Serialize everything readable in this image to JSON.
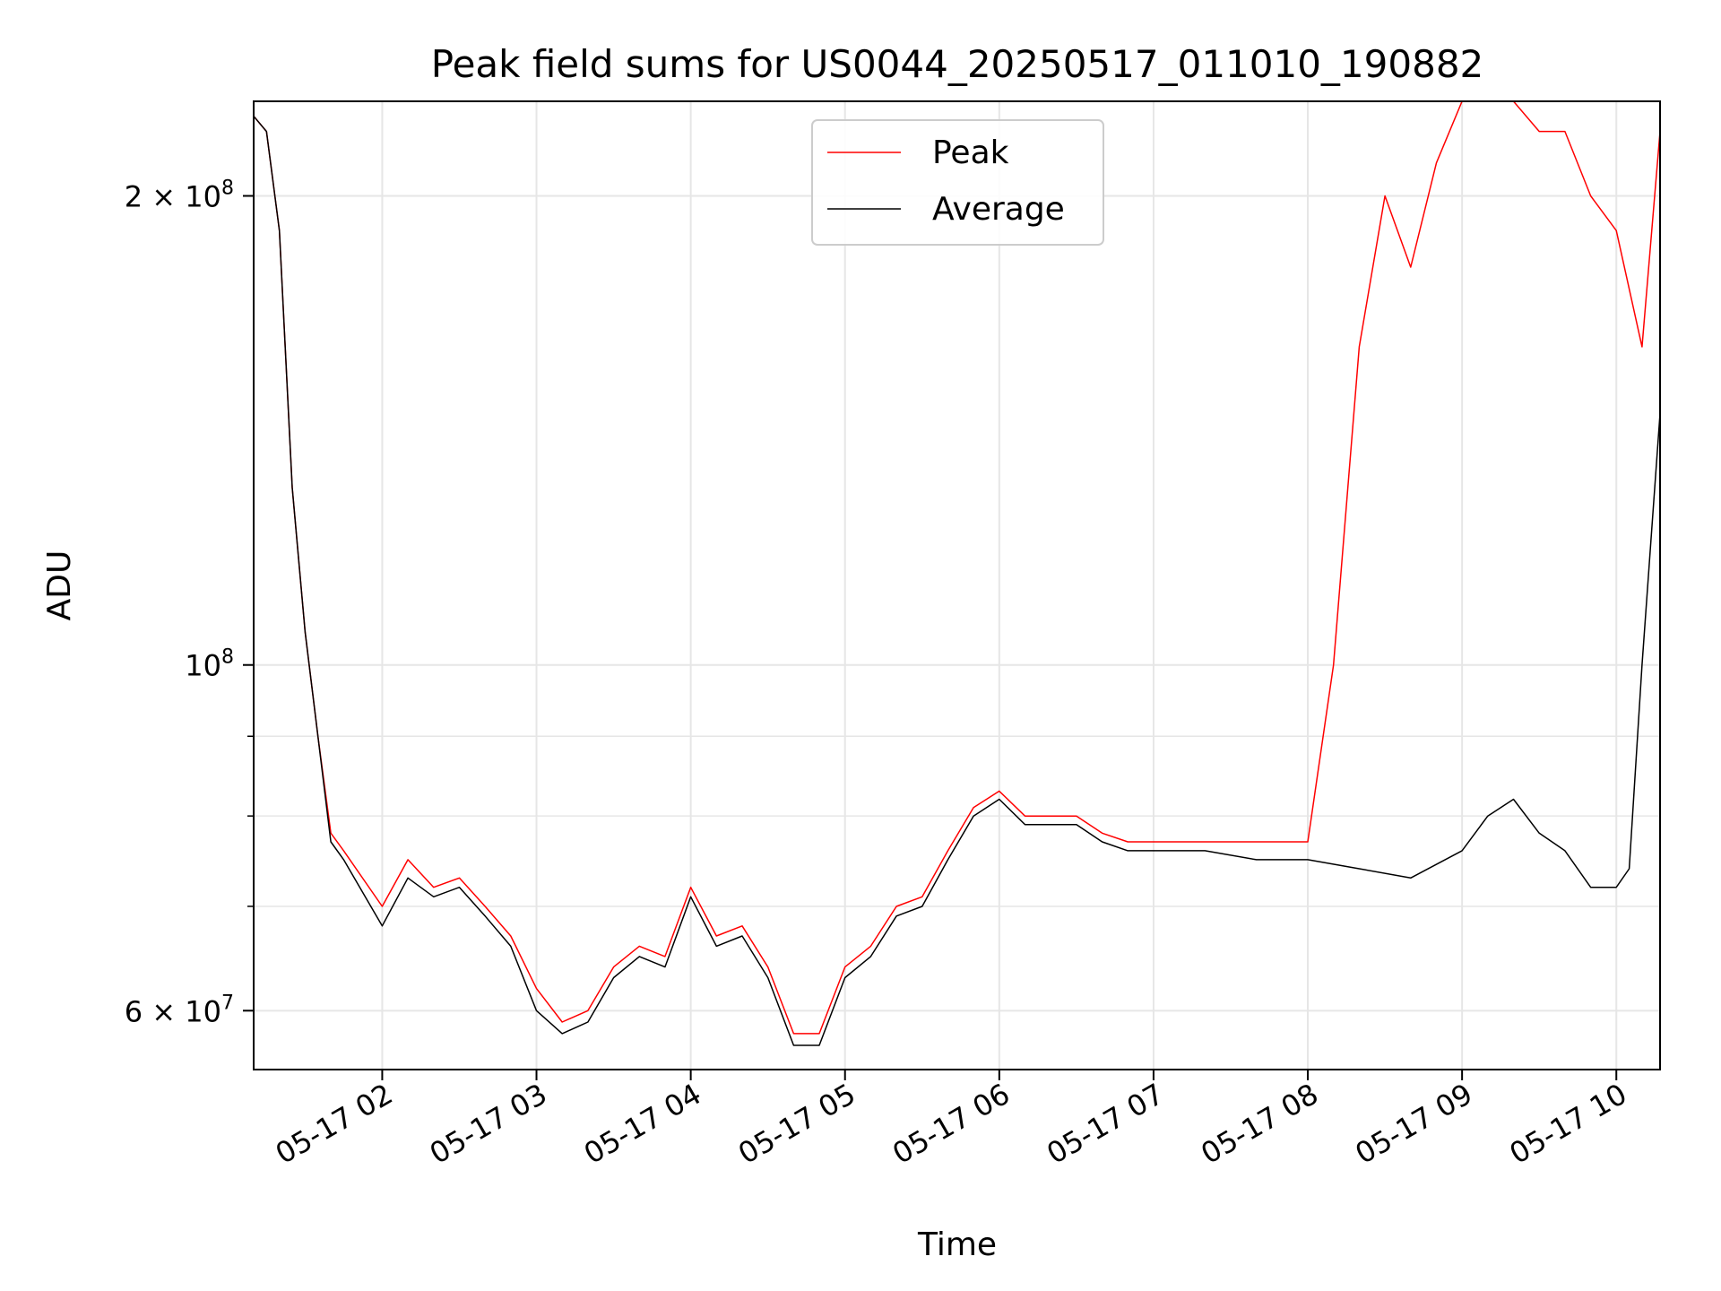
{
  "chart_data": {
    "type": "line",
    "title": "Peak field sums for US0044_20250517_011010_190882",
    "xlabel": "Time",
    "ylabel": "ADU",
    "y_scale": "log",
    "ylim": [
      55000000.0,
      230000000.0
    ],
    "xlim": [
      "2025-05-17 01:10",
      "2025-05-17 10:17"
    ],
    "x_ticks": [
      "05-17 02",
      "05-17 03",
      "05-17 04",
      "05-17 05",
      "05-17 06",
      "05-17 07",
      "05-17 08",
      "05-17 09",
      "05-17 10"
    ],
    "y_ticks": [
      {
        "value": 60000000.0,
        "mantissa": "6",
        "label": "6 × 10^7"
      },
      {
        "value": 100000000.0,
        "mantissa": "",
        "label": "10^8"
      },
      {
        "value": 200000000.0,
        "mantissa": "2",
        "label": "2 × 10^8"
      }
    ],
    "grid": true,
    "legend_position": "top-center",
    "series": [
      {
        "name": "Peak",
        "color": "#ff0000",
        "x": [
          "2025-05-17 01:10",
          "2025-05-17 01:15",
          "2025-05-17 01:20",
          "2025-05-17 01:25",
          "2025-05-17 01:30",
          "2025-05-17 01:35",
          "2025-05-17 01:40",
          "2025-05-17 01:45",
          "2025-05-17 02:00",
          "2025-05-17 02:10",
          "2025-05-17 02:20",
          "2025-05-17 02:30",
          "2025-05-17 02:40",
          "2025-05-17 02:50",
          "2025-05-17 03:00",
          "2025-05-17 03:10",
          "2025-05-17 03:20",
          "2025-05-17 03:30",
          "2025-05-17 03:40",
          "2025-05-17 03:50",
          "2025-05-17 04:00",
          "2025-05-17 04:10",
          "2025-05-17 04:20",
          "2025-05-17 04:30",
          "2025-05-17 04:40",
          "2025-05-17 04:50",
          "2025-05-17 05:00",
          "2025-05-17 05:10",
          "2025-05-17 05:20",
          "2025-05-17 05:30",
          "2025-05-17 05:40",
          "2025-05-17 05:50",
          "2025-05-17 06:00",
          "2025-05-17 06:10",
          "2025-05-17 06:20",
          "2025-05-17 06:30",
          "2025-05-17 06:40",
          "2025-05-17 06:50",
          "2025-05-17 07:00",
          "2025-05-17 07:20",
          "2025-05-17 07:40",
          "2025-05-17 08:00",
          "2025-05-17 08:10",
          "2025-05-17 08:20",
          "2025-05-17 08:30",
          "2025-05-17 08:40",
          "2025-05-17 08:50",
          "2025-05-17 09:00",
          "2025-05-17 09:10",
          "2025-05-17 09:20",
          "2025-05-17 09:30",
          "2025-05-17 09:40",
          "2025-05-17 09:50",
          "2025-05-17 10:00",
          "2025-05-17 10:10",
          "2025-05-17 10:17"
        ],
        "values": [
          225000000.0,
          220000000.0,
          190000000.0,
          130000000.0,
          105000000.0,
          90000000.0,
          78000000.0,
          76000000.0,
          70000000.0,
          75000000.0,
          72000000.0,
          73000000.0,
          70000000.0,
          67000000.0,
          62000000.0,
          59000000.0,
          60000000.0,
          64000000.0,
          66000000.0,
          65000000.0,
          72000000.0,
          67000000.0,
          68000000.0,
          64000000.0,
          58000000.0,
          58000000.0,
          64000000.0,
          66000000.0,
          70000000.0,
          71000000.0,
          76000000.0,
          81000000.0,
          83000000.0,
          80000000.0,
          80000000.0,
          80000000.0,
          78000000.0,
          77000000.0,
          77000000.0,
          77000000.0,
          77000000.0,
          77000000.0,
          100000000.0,
          160000000.0,
          200000000.0,
          180000000.0,
          210000000.0,
          230000000.0,
          230000000.0,
          230000000.0,
          220000000.0,
          220000000.0,
          200000000.0,
          190000000.0,
          160000000.0,
          220000000.0
        ]
      },
      {
        "name": "Average",
        "color": "#000000",
        "x": [
          "2025-05-17 01:10",
          "2025-05-17 01:15",
          "2025-05-17 01:20",
          "2025-05-17 01:25",
          "2025-05-17 01:30",
          "2025-05-17 01:35",
          "2025-05-17 01:40",
          "2025-05-17 01:45",
          "2025-05-17 02:00",
          "2025-05-17 02:10",
          "2025-05-17 02:20",
          "2025-05-17 02:30",
          "2025-05-17 02:40",
          "2025-05-17 02:50",
          "2025-05-17 03:00",
          "2025-05-17 03:10",
          "2025-05-17 03:20",
          "2025-05-17 03:30",
          "2025-05-17 03:40",
          "2025-05-17 03:50",
          "2025-05-17 04:00",
          "2025-05-17 04:10",
          "2025-05-17 04:20",
          "2025-05-17 04:30",
          "2025-05-17 04:40",
          "2025-05-17 04:50",
          "2025-05-17 05:00",
          "2025-05-17 05:10",
          "2025-05-17 05:20",
          "2025-05-17 05:30",
          "2025-05-17 05:40",
          "2025-05-17 05:50",
          "2025-05-17 06:00",
          "2025-05-17 06:10",
          "2025-05-17 06:20",
          "2025-05-17 06:30",
          "2025-05-17 06:40",
          "2025-05-17 06:50",
          "2025-05-17 07:00",
          "2025-05-17 07:20",
          "2025-05-17 07:40",
          "2025-05-17 08:00",
          "2025-05-17 08:20",
          "2025-05-17 08:40",
          "2025-05-17 09:00",
          "2025-05-17 09:10",
          "2025-05-17 09:20",
          "2025-05-17 09:30",
          "2025-05-17 09:40",
          "2025-05-17 09:50",
          "2025-05-17 10:00",
          "2025-05-17 10:05",
          "2025-05-17 10:10",
          "2025-05-17 10:17"
        ],
        "values": [
          225000000.0,
          220000000.0,
          190000000.0,
          130000000.0,
          105000000.0,
          90000000.0,
          77000000.0,
          75000000.0,
          68000000.0,
          73000000.0,
          71000000.0,
          72000000.0,
          69000000.0,
          66000000.0,
          60000000.0,
          58000000.0,
          59000000.0,
          63000000.0,
          65000000.0,
          64000000.0,
          71000000.0,
          66000000.0,
          67000000.0,
          63000000.0,
          57000000.0,
          57000000.0,
          63000000.0,
          65000000.0,
          69000000.0,
          70000000.0,
          75000000.0,
          80000000.0,
          82000000.0,
          79000000.0,
          79000000.0,
          79000000.0,
          77000000.0,
          76000000.0,
          76000000.0,
          76000000.0,
          75000000.0,
          75000000.0,
          74000000.0,
          73000000.0,
          76000000.0,
          80000000.0,
          82000000.0,
          78000000.0,
          76000000.0,
          72000000.0,
          72000000.0,
          74000000.0,
          100000000.0,
          145000000.0
        ]
      }
    ]
  }
}
